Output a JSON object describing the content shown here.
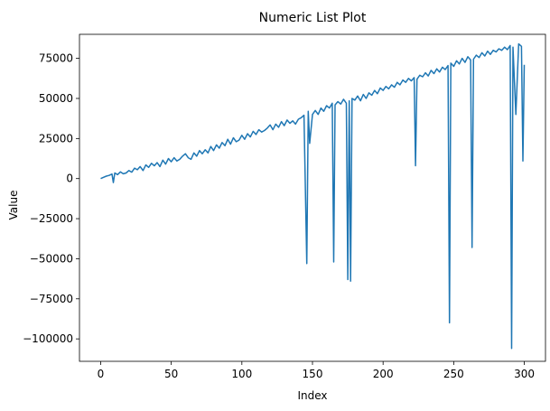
{
  "chart_data": {
    "type": "line",
    "title": "Numeric List Plot",
    "xlabel": "Index",
    "ylabel": "Value",
    "xlim": [
      -15,
      315
    ],
    "ylim": [
      -114000,
      90000
    ],
    "x_ticks": [
      0,
      50,
      100,
      150,
      200,
      250,
      300
    ],
    "x_tick_labels": [
      "0",
      "50",
      "100",
      "150",
      "200",
      "250",
      "300"
    ],
    "y_ticks": [
      -100000,
      -75000,
      -50000,
      -25000,
      0,
      25000,
      50000,
      75000
    ],
    "y_tick_labels": [
      "−100000",
      "−75000",
      "−50000",
      "−25000",
      "0",
      "25000",
      "50000",
      "75000"
    ],
    "grid": false,
    "series": [
      {
        "color": "#1f77b4",
        "x": [
          0,
          2,
          4,
          6,
          8,
          9,
          10,
          12,
          14,
          16,
          18,
          20,
          22,
          24,
          26,
          28,
          30,
          32,
          34,
          36,
          38,
          40,
          42,
          44,
          46,
          48,
          50,
          52,
          54,
          56,
          58,
          60,
          62,
          64,
          66,
          68,
          70,
          72,
          74,
          76,
          78,
          80,
          82,
          84,
          86,
          88,
          90,
          92,
          94,
          96,
          98,
          100,
          102,
          104,
          106,
          108,
          110,
          112,
          114,
          116,
          118,
          120,
          122,
          124,
          126,
          128,
          130,
          132,
          134,
          136,
          138,
          140,
          142,
          144,
          146,
          147,
          148,
          150,
          152,
          154,
          156,
          158,
          160,
          162,
          164,
          165,
          166,
          168,
          170,
          172,
          174,
          175,
          176,
          177,
          178,
          180,
          182,
          184,
          186,
          188,
          190,
          192,
          194,
          196,
          198,
          200,
          202,
          204,
          206,
          208,
          210,
          212,
          214,
          216,
          218,
          220,
          222,
          223,
          224,
          226,
          228,
          230,
          232,
          234,
          236,
          238,
          240,
          242,
          244,
          246,
          247,
          248,
          250,
          252,
          254,
          256,
          258,
          260,
          262,
          263,
          264,
          266,
          268,
          270,
          272,
          274,
          276,
          278,
          280,
          282,
          284,
          286,
          288,
          290,
          291,
          292,
          294,
          296,
          298,
          299,
          300
        ],
        "y": [
          0,
          800,
          1500,
          2000,
          2800,
          -2500,
          3500,
          2500,
          4200,
          3000,
          3500,
          5000,
          4000,
          6500,
          5500,
          7500,
          5000,
          8500,
          7000,
          9500,
          8000,
          10000,
          7500,
          11500,
          9000,
          12500,
          10500,
          13000,
          11000,
          12000,
          14000,
          15500,
          13000,
          12000,
          16000,
          14000,
          17500,
          15500,
          18000,
          16000,
          20000,
          17500,
          21000,
          19000,
          22500,
          20500,
          24500,
          21500,
          25500,
          23000,
          24000,
          27000,
          24500,
          28000,
          26000,
          29500,
          27500,
          30500,
          29000,
          30000,
          31500,
          33500,
          30500,
          34000,
          32000,
          35500,
          33000,
          36500,
          34500,
          36000,
          34000,
          37000,
          38000,
          39500,
          -53000,
          42000,
          22000,
          40000,
          42500,
          40000,
          44000,
          42000,
          45500,
          44000,
          47000,
          -52000,
          46000,
          48000,
          46500,
          49500,
          47000,
          -63000,
          48500,
          -64000,
          50000,
          49000,
          51500,
          48500,
          52500,
          50000,
          53500,
          52000,
          55000,
          53000,
          56500,
          55000,
          57500,
          56000,
          58500,
          57000,
          60000,
          58500,
          61500,
          60000,
          62500,
          61000,
          63000,
          8000,
          62000,
          64500,
          63500,
          66000,
          64000,
          67500,
          65500,
          68500,
          66500,
          69500,
          68000,
          70500,
          -90000,
          72000,
          70000,
          73500,
          71500,
          75000,
          72500,
          76000,
          74000,
          -43000,
          74500,
          77000,
          75500,
          78500,
          76500,
          79500,
          77500,
          80000,
          79000,
          81000,
          80000,
          82000,
          80500,
          83000,
          -106000,
          82000,
          40000,
          84000,
          82500,
          11000,
          71000
        ]
      }
    ]
  }
}
